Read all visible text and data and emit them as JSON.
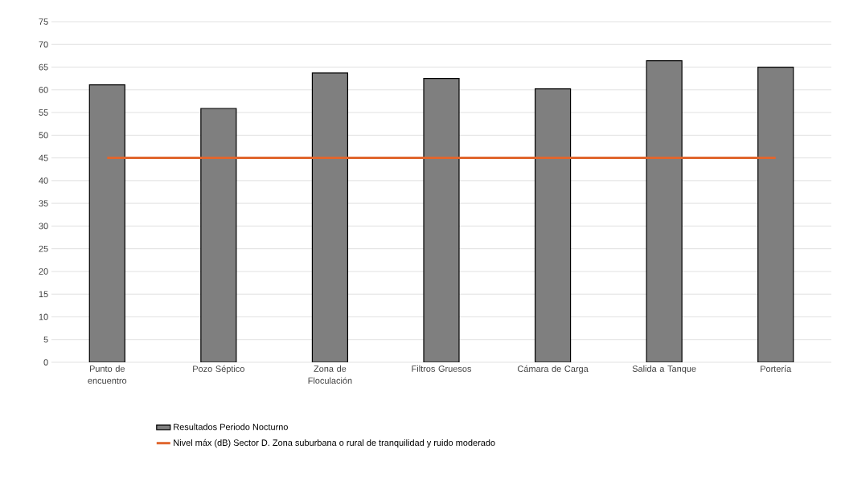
{
  "chart_data": {
    "type": "bar",
    "categories": [
      "Punto de encuentro",
      "Pozo Séptico",
      "Zona de Floculación",
      "Filtros Gruesos",
      "Cámara de Carga",
      "Salida a Tanque",
      "Portería"
    ],
    "series": [
      {
        "name": "Resultados Periodo Nocturno",
        "color": "#7f7f7f",
        "values": [
          61.1,
          55.9,
          63.7,
          62.5,
          60.2,
          66.4,
          65.0
        ]
      },
      {
        "name": "Nivel máx (dB) Sector D. Zona suburbana o rural de tranquilidad y ruido moderado",
        "type": "line",
        "color": "#e0662e",
        "values": [
          45,
          45,
          45,
          45,
          45,
          45,
          45
        ]
      }
    ],
    "ylim": [
      0,
      75
    ],
    "yticks": [
      0,
      5,
      10,
      15,
      20,
      25,
      30,
      35,
      40,
      45,
      50,
      55,
      60,
      65,
      70,
      75
    ],
    "grid": "y",
    "legend": "bottom",
    "marker": "none"
  }
}
